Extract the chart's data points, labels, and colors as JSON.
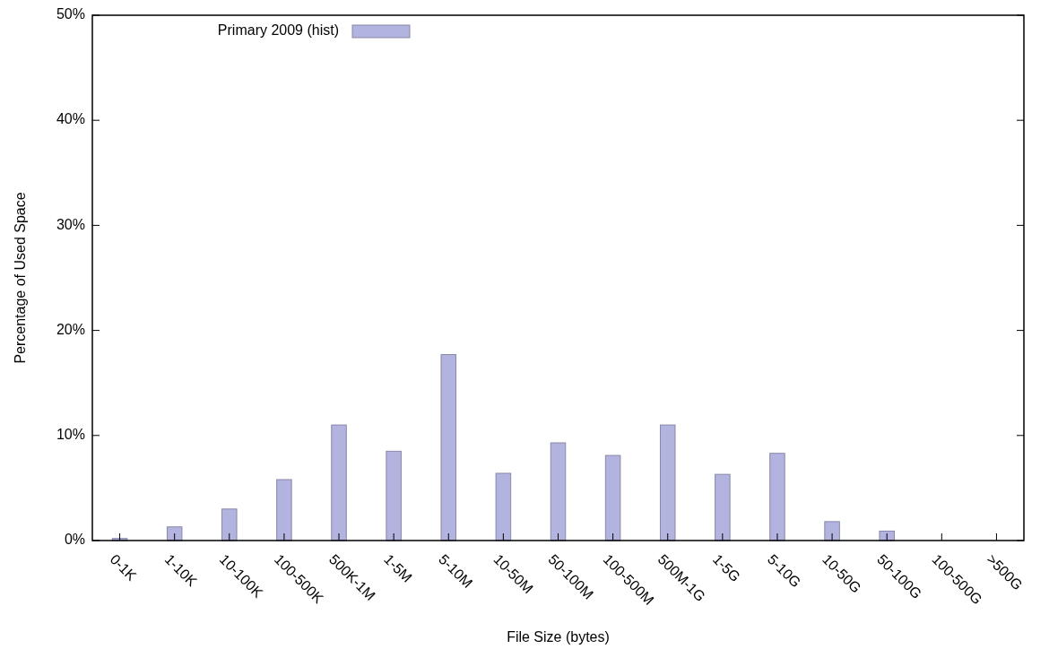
{
  "chart_data": {
    "type": "bar",
    "xlabel": "File Size (bytes)",
    "ylabel": "Percentage of Used Space",
    "categories": [
      "0-1K",
      "1-10K",
      "10-100K",
      "100-500K",
      "500K-1M",
      "1-5M",
      "5-10M",
      "10-50M",
      "50-100M",
      "100-500M",
      "500M-1G",
      "1-5G",
      "5-10G",
      "10-50G",
      "50-100G",
      "100-500G",
      ">500G"
    ],
    "series": [
      {
        "name": "Primary 2009 (hist)",
        "color": "#b3b3df",
        "values": [
          0.2,
          1.3,
          3.0,
          5.8,
          11.0,
          8.5,
          17.7,
          6.4,
          9.3,
          8.1,
          11.0,
          6.3,
          8.3,
          1.8,
          0.9,
          0,
          0
        ]
      }
    ],
    "ylim": [
      0,
      50
    ],
    "yticks": [
      {
        "value": 0,
        "label": "0%"
      },
      {
        "value": 10,
        "label": "10%"
      },
      {
        "value": 20,
        "label": "20%"
      },
      {
        "value": 30,
        "label": "30%"
      },
      {
        "value": 40,
        "label": "40%"
      },
      {
        "value": 50,
        "label": "50%"
      }
    ],
    "legend": "top left"
  }
}
